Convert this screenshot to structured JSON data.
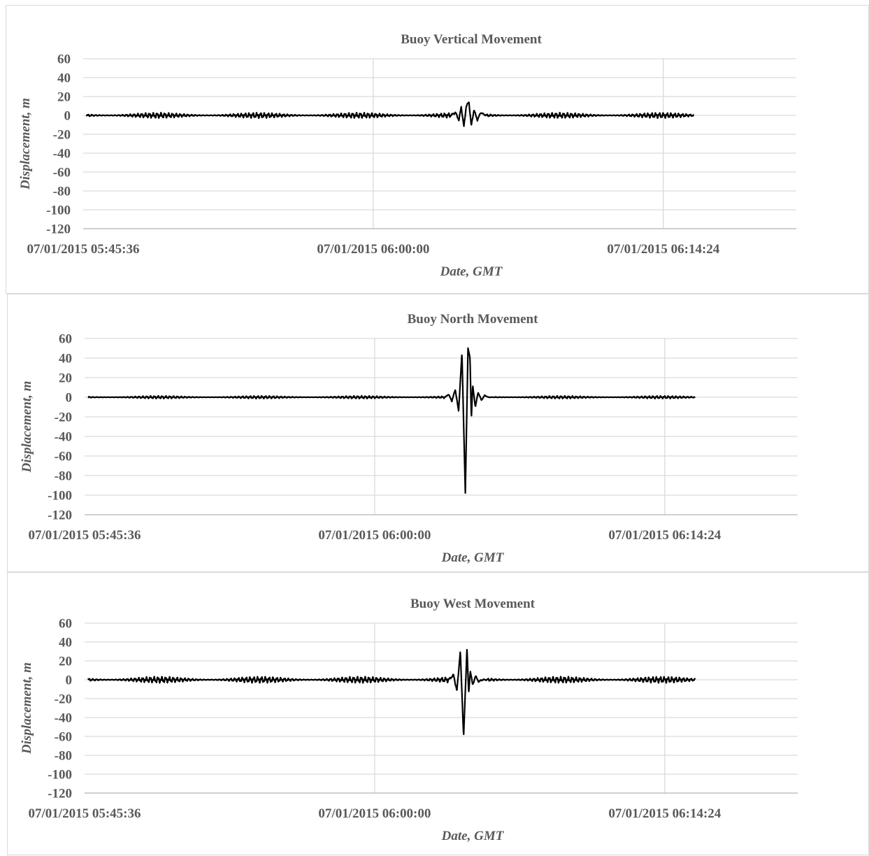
{
  "chart_data": [
    {
      "type": "line",
      "title": "Buoy Vertical Movement",
      "xlabel": "Date, GMT",
      "ylabel": "Displacement, m",
      "ylim": [
        -120,
        60
      ],
      "yticks": [
        "60",
        "40",
        "20",
        "0",
        "-20",
        "-40",
        "-60",
        "-80",
        "-100",
        "-120"
      ],
      "xlim": [
        "07/01/2015 05:45:36",
        "07/01/2015 06:21:00"
      ],
      "xticks": [
        "07/01/2015 05:45:36",
        "07/01/2015 06:00:00",
        "07/01/2015 06:14:24"
      ],
      "grid": true,
      "line_color": "#000000",
      "series": [
        {
          "x": [
            "07/01/2015 05:45:46",
            "07/01/2015 06:03:50",
            "07/01/2015 06:04:05",
            "07/01/2015 06:04:15",
            "07/01/2015 06:04:22",
            "07/01/2015 06:04:30",
            "07/01/2015 06:04:37",
            "07/01/2015 06:04:45",
            "07/01/2015 06:04:52",
            "07/01/2015 06:05:00",
            "07/01/2015 06:05:10",
            "07/01/2015 06:05:20",
            "07/01/2015 06:05:35",
            "07/01/2015 06:15:55"
          ],
          "y": [
            0,
            0,
            3,
            -5,
            9,
            -12,
            10,
            14,
            -11,
            6,
            -5,
            3,
            0,
            0
          ],
          "noise": 3
        }
      ]
    },
    {
      "type": "line",
      "title": "Buoy North Movement",
      "xlabel": "Date, GMT",
      "ylabel": "Displacement, m",
      "ylim": [
        -120,
        60
      ],
      "yticks": [
        "60",
        "40",
        "20",
        "0",
        "-20",
        "-40",
        "-60",
        "-80",
        "-100",
        "-120"
      ],
      "xlim": [
        "07/01/2015 05:45:36",
        "07/01/2015 06:21:00"
      ],
      "xticks": [
        "07/01/2015 05:45:36",
        "07/01/2015 06:00:00",
        "07/01/2015 06:14:24"
      ],
      "grid": true,
      "line_color": "#000000",
      "series": [
        {
          "x": [
            "07/01/2015 05:45:46",
            "07/01/2015 06:03:30",
            "07/01/2015 06:03:40",
            "07/01/2015 06:03:50",
            "07/01/2015 06:04:00",
            "07/01/2015 06:04:10",
            "07/01/2015 06:04:20",
            "07/01/2015 06:04:30",
            "07/01/2015 06:04:38",
            "07/01/2015 06:04:44",
            "07/01/2015 06:04:48",
            "07/01/2015 06:04:52",
            "07/01/2015 06:05:00",
            "07/01/2015 06:05:08",
            "07/01/2015 06:05:18",
            "07/01/2015 06:05:28",
            "07/01/2015 06:05:38",
            "07/01/2015 06:05:48",
            "07/01/2015 06:06:00",
            "07/01/2015 06:15:55"
          ],
          "y": [
            0,
            0,
            3,
            -4,
            8,
            -14,
            45,
            -98,
            50,
            40,
            -22,
            12,
            -10,
            5,
            -3,
            2,
            0,
            0,
            0,
            0
          ],
          "noise": 1.5
        }
      ]
    },
    {
      "type": "line",
      "title": "Buoy West Movement",
      "xlabel": "Date, GMT",
      "ylabel": "Displacement, m",
      "ylim": [
        -120,
        60
      ],
      "yticks": [
        "60",
        "40",
        "20",
        "0",
        "-20",
        "-40",
        "-60",
        "-80",
        "-100",
        "-120"
      ],
      "xlim": [
        "07/01/2015 05:45:36",
        "07/01/2015 06:21:00"
      ],
      "xticks": [
        "07/01/2015 05:45:36",
        "07/01/2015 06:00:00",
        "07/01/2015 06:14:24"
      ],
      "grid": true,
      "line_color": "#000000",
      "series": [
        {
          "x": [
            "07/01/2015 05:45:46",
            "07/01/2015 06:03:40",
            "07/01/2015 06:03:55",
            "07/01/2015 06:04:05",
            "07/01/2015 06:04:15",
            "07/01/2015 06:04:25",
            "07/01/2015 06:04:35",
            "07/01/2015 06:04:40",
            "07/01/2015 06:04:45",
            "07/01/2015 06:04:52",
            "07/01/2015 06:05:00",
            "07/01/2015 06:05:10",
            "07/01/2015 06:05:20",
            "07/01/2015 06:05:35",
            "07/01/2015 06:15:55"
          ],
          "y": [
            0,
            0,
            5,
            -12,
            30,
            -60,
            34,
            -15,
            10,
            -6,
            4,
            -2,
            0,
            0,
            0
          ],
          "noise": 3.5
        }
      ]
    }
  ]
}
